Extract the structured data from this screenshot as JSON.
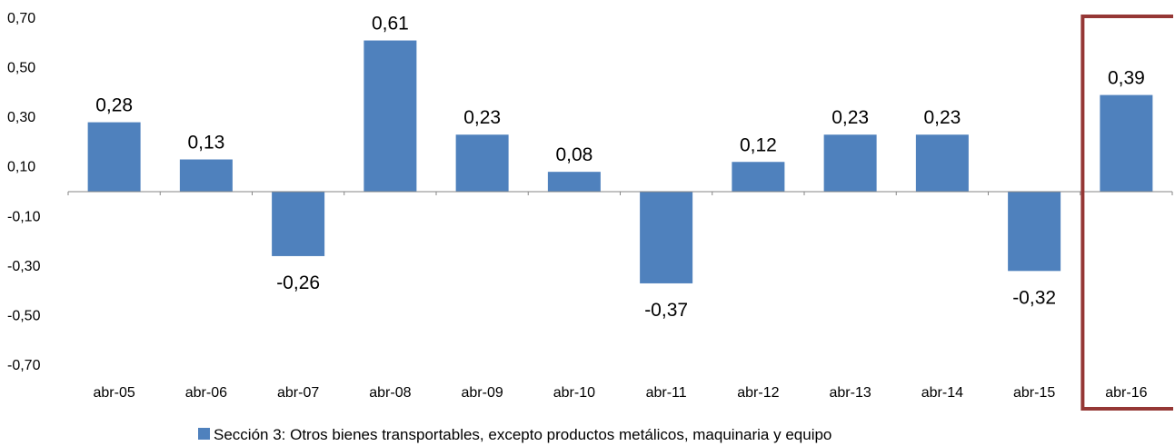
{
  "chart_data": {
    "type": "bar",
    "categories": [
      "abr-05",
      "abr-06",
      "abr-07",
      "abr-08",
      "abr-09",
      "abr-10",
      "abr-11",
      "abr-12",
      "abr-13",
      "abr-14",
      "abr-15",
      "abr-16"
    ],
    "series": [
      {
        "name": "Sección 3: Otros bienes transportables, excepto productos metálicos, maquinaria y equipo",
        "values": [
          0.28,
          0.13,
          -0.26,
          0.61,
          0.23,
          0.08,
          -0.37,
          0.12,
          0.23,
          0.23,
          -0.32,
          0.39
        ],
        "labels": [
          "0,28",
          "0,13",
          "-0,26",
          "0,61",
          "0,23",
          "0,08",
          "-0,37",
          "0,12",
          "0,23",
          "0,23",
          "-0,32",
          "0,39"
        ]
      }
    ],
    "ylim": [
      -0.7,
      0.7
    ],
    "yticks": [
      0.7,
      0.5,
      0.3,
      0.1,
      -0.1,
      -0.3,
      -0.5,
      -0.7
    ],
    "ytick_labels": [
      "0,70",
      "0,50",
      "0,30",
      "0,10",
      "-0,10",
      "-0,30",
      "-0,50",
      "-0,70"
    ],
    "grid": false,
    "legend_position": "bottom",
    "highlighted_category": "abr-16",
    "colors": {
      "bar": "#4f81bd",
      "highlight_box": "#953735",
      "axis": "#868686"
    }
  }
}
